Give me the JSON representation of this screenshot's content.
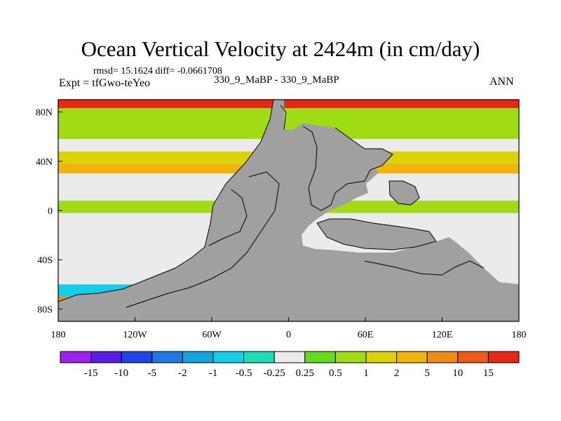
{
  "chart_data": {
    "type": "heatmap",
    "title": "Ocean Vertical Velocity at 2424m (in cm/day)",
    "stats_line": "rmsd= 15.1624  diff= -0.0661708",
    "left_label": "Expt = tfGwo-teYeo",
    "center_label": "330_9_MaBP - 330_9_MaBP",
    "right_label": "ANN",
    "x_axis": {
      "range": [
        -180,
        180
      ],
      "ticks": [
        {
          "value": -180,
          "label": "180"
        },
        {
          "value": -120,
          "label": "120W"
        },
        {
          "value": -60,
          "label": "60W"
        },
        {
          "value": 0,
          "label": "0"
        },
        {
          "value": 60,
          "label": "60E"
        },
        {
          "value": 120,
          "label": "120E"
        },
        {
          "value": 180,
          "label": "180"
        }
      ]
    },
    "y_axis": {
      "range": [
        -90,
        90
      ],
      "ticks": [
        {
          "value": 80,
          "label": "80N"
        },
        {
          "value": 40,
          "label": "40N"
        },
        {
          "value": 0,
          "label": "0"
        },
        {
          "value": -40,
          "label": "40S"
        },
        {
          "value": -80,
          "label": "80S"
        }
      ]
    },
    "colorbar": {
      "levels": [
        "-15",
        "-10",
        "-5",
        "-2",
        "-1",
        "-0.5",
        "-0.25",
        "0.25",
        "0.5",
        "1",
        "2",
        "5",
        "10",
        "15"
      ],
      "colors": [
        "#a020f0",
        "#5a1ee6",
        "#1e46e6",
        "#1e78e6",
        "#14a5e1",
        "#14cde6",
        "#1edcb4",
        "#ebebeb",
        "#64dc1e",
        "#a0dc14",
        "#dcd20a",
        "#f0b40a",
        "#f08c14",
        "#f05a14",
        "#e62814"
      ]
    },
    "land_color": "#a0a0a0",
    "land_note": "masked continents (paleogeography) shown in gray",
    "ocean_bands": [
      {
        "lat": [
          83,
          90
        ],
        "value": 15
      },
      {
        "lat": [
          58,
          83
        ],
        "value": 0.5
      },
      {
        "lat": [
          48,
          58
        ],
        "value": 0
      },
      {
        "lat": [
          38,
          48
        ],
        "value": 1
      },
      {
        "lat": [
          30,
          38
        ],
        "value": 2
      },
      {
        "lat": [
          8,
          30
        ],
        "value": 0
      },
      {
        "lat": [
          -2,
          8
        ],
        "value": 0.5
      },
      {
        "lat": [
          -60,
          -2
        ],
        "value": 0
      },
      {
        "lat": [
          -70,
          -60
        ],
        "value": -1
      },
      {
        "lat": [
          -80,
          -70
        ],
        "value": 5
      }
    ]
  }
}
